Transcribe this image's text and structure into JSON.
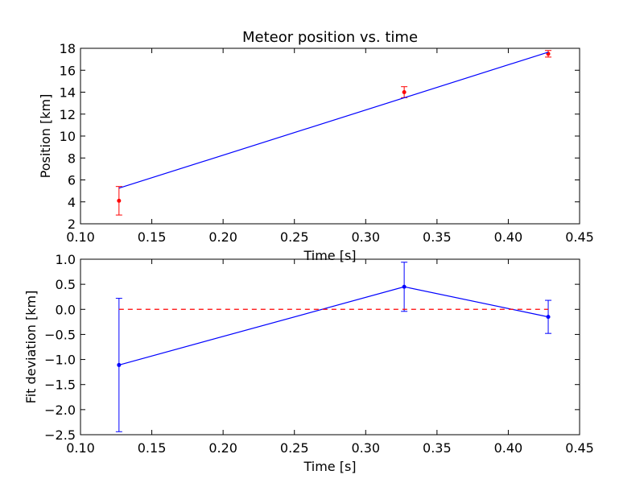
{
  "chart_data": [
    {
      "type": "scatter",
      "title": "Meteor position vs. time",
      "xlabel": "Time [s]",
      "ylabel": "Position [km]",
      "xlim": [
        0.1,
        0.45
      ],
      "ylim": [
        2,
        18
      ],
      "xticks": [
        "0.10",
        "0.15",
        "0.20",
        "0.25",
        "0.30",
        "0.35",
        "0.40",
        "0.45"
      ],
      "xtick_values": [
        0.1,
        0.15,
        0.2,
        0.25,
        0.3,
        0.35,
        0.4,
        0.45
      ],
      "yticks": [
        "2",
        "4",
        "6",
        "8",
        "10",
        "12",
        "14",
        "16",
        "18"
      ],
      "ytick_values": [
        2,
        4,
        6,
        8,
        10,
        12,
        14,
        16,
        18
      ],
      "grid": false,
      "series": [
        {
          "kind": "errorbar",
          "color": "#ff0000",
          "x": [
            0.127,
            0.327,
            0.428
          ],
          "y": [
            4.1,
            14.0,
            17.5
          ],
          "yerr": [
            1.3,
            0.5,
            0.3
          ]
        },
        {
          "kind": "line",
          "color": "#0000ff",
          "x": [
            0.127,
            0.428
          ],
          "y": [
            5.25,
            17.65
          ]
        }
      ]
    },
    {
      "type": "scatter",
      "title": "",
      "xlabel": "Time [s]",
      "ylabel": "Fit deviation [km]",
      "xlim": [
        0.1,
        0.45
      ],
      "ylim": [
        -2.5,
        1.0
      ],
      "xticks": [
        "0.10",
        "0.15",
        "0.20",
        "0.25",
        "0.30",
        "0.35",
        "0.40",
        "0.45"
      ],
      "xtick_values": [
        0.1,
        0.15,
        0.2,
        0.25,
        0.3,
        0.35,
        0.4,
        0.45
      ],
      "yticks": [
        "1.0",
        "0.5",
        "0.0",
        "−0.5",
        "−1.0",
        "−1.5",
        "−2.0",
        "−2.5"
      ],
      "ytick_values": [
        1.0,
        0.5,
        0.0,
        -0.5,
        -1.0,
        -1.5,
        -2.0,
        -2.5
      ],
      "grid": false,
      "series": [
        {
          "kind": "errorbar-line",
          "color": "#0000ff",
          "x": [
            0.127,
            0.327,
            0.428
          ],
          "y": [
            -1.11,
            0.45,
            -0.15
          ],
          "yerr": [
            1.33,
            0.49,
            0.33
          ]
        },
        {
          "kind": "hline-dashed",
          "color": "#ff0000",
          "x": [
            0.127,
            0.428
          ],
          "y": [
            0.0,
            0.0
          ]
        }
      ]
    }
  ]
}
